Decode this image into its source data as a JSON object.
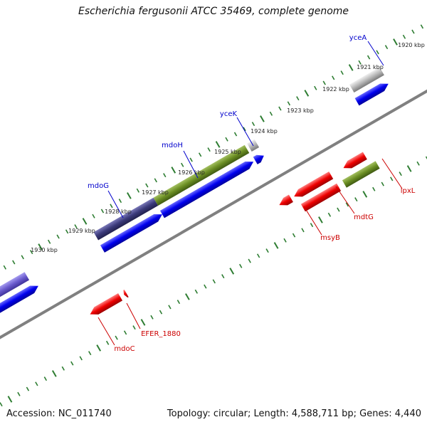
{
  "title": "Escherichia fergusonii ATCC 35469, complete genome",
  "footer": {
    "accession": "Accession: NC_011740",
    "topology": "Topology: circular; Length: 4,588,711 bp; Genes: 4,440"
  },
  "scale_labels": [
    "1920 kbp",
    "1921 kbp",
    "1922 kbp",
    "1923 kbp",
    "1924 kbp",
    "1925 kbp",
    "1926 kbp",
    "1927 kbp",
    "1928 kbp",
    "1929 kbp",
    "1930 kbp"
  ],
  "genes_top": [
    "yceA",
    "yceK",
    "mdoH",
    "mdoG"
  ],
  "genes_bottom": [
    "lpxL",
    "mdtG",
    "msyB",
    "EFER_1880",
    "mdoC"
  ],
  "colors": {
    "forward_label": "#0000cc",
    "reverse_label": "#cc0000",
    "cds_blue": "#0000ee",
    "cds_red": "#ee0000",
    "gene_green": "#6b8e23",
    "gene_dark": "#3b3a7a",
    "gene_purple": "#6a5acd",
    "gene_grey": "#b8b8b8",
    "backbone": "#808080",
    "tick_green": "#2e7d32"
  }
}
